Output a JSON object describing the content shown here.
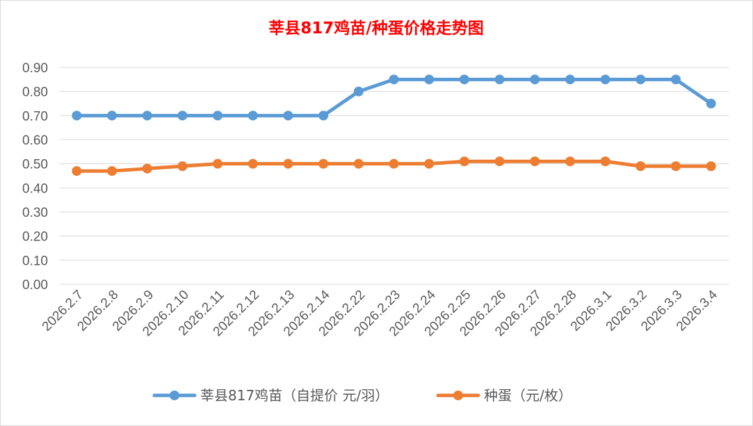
{
  "chart_data": {
    "type": "line",
    "title": "莘县817鸡苗/种蛋价格走势图",
    "categories": [
      "2026.2.7",
      "2026.2.8",
      "2026.2.9",
      "2026.2.10",
      "2026.2.11",
      "2026.2.12",
      "2026.2.13",
      "2026.2.14",
      "2026.2.22",
      "2026.2.23",
      "2026.2.24",
      "2026.2.25",
      "2026.2.26",
      "2026.2.27",
      "2026.2.28",
      "2026.3.1",
      "2026.3.2",
      "2026.3.3",
      "2026.3.4"
    ],
    "yticks": [
      "0.00",
      "0.10",
      "0.20",
      "0.30",
      "0.40",
      "0.50",
      "0.60",
      "0.70",
      "0.80",
      "0.90"
    ],
    "ylim": [
      0,
      0.9
    ],
    "grid": true,
    "legend_position": "bottom",
    "series": [
      {
        "name": "莘县817鸡苗（自提价 元/羽）",
        "color": "#5b9bd5",
        "values": [
          0.7,
          0.7,
          0.7,
          0.7,
          0.7,
          0.7,
          0.7,
          0.7,
          0.8,
          0.85,
          0.85,
          0.85,
          0.85,
          0.85,
          0.85,
          0.85,
          0.85,
          0.85,
          0.75
        ]
      },
      {
        "name": "种蛋（元/枚）",
        "color": "#ed7d31",
        "values": [
          0.47,
          0.47,
          0.48,
          0.49,
          0.5,
          0.5,
          0.5,
          0.5,
          0.5,
          0.5,
          0.5,
          0.51,
          0.51,
          0.51,
          0.51,
          0.51,
          0.49,
          0.49,
          0.49
        ]
      }
    ]
  }
}
